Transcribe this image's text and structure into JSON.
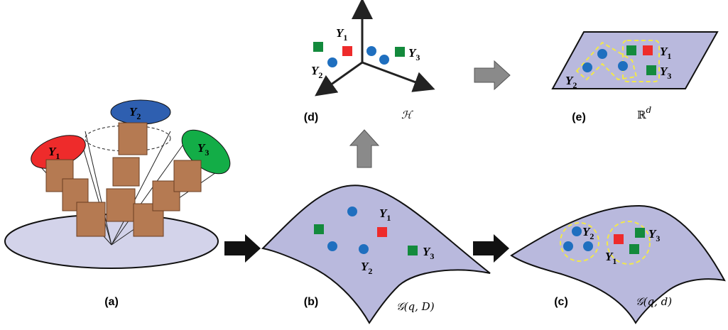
{
  "panel_a": {
    "caption": "(a)",
    "clusters": [
      {
        "symbol": "Y",
        "index": "1"
      },
      {
        "symbol": "Y",
        "index": "2"
      },
      {
        "symbol": "Y",
        "index": "3"
      }
    ]
  },
  "panel_b": {
    "caption": "(b)",
    "space": "𝒢(q, D)",
    "clusters": [
      {
        "symbol": "Y",
        "index": "1"
      },
      {
        "symbol": "Y",
        "index": "2"
      },
      {
        "symbol": "Y",
        "index": "3"
      }
    ]
  },
  "panel_c": {
    "caption": "(c)",
    "space": "𝒢(q, d)",
    "clusters": [
      {
        "symbol": "Y",
        "index": "1"
      },
      {
        "symbol": "Y",
        "index": "2"
      },
      {
        "symbol": "Y",
        "index": "3"
      }
    ]
  },
  "panel_d": {
    "caption": "(d)",
    "space": "ℋ",
    "clusters": [
      {
        "symbol": "Y",
        "index": "1"
      },
      {
        "symbol": "Y",
        "index": "2"
      },
      {
        "symbol": "Y",
        "index": "3"
      }
    ]
  },
  "panel_e": {
    "caption": "(e)",
    "space": "ℝ",
    "space_sup": "d",
    "clusters": [
      {
        "symbol": "Y",
        "index": "1"
      },
      {
        "symbol": "Y",
        "index": "2"
      },
      {
        "symbol": "Y",
        "index": "3"
      }
    ]
  }
}
